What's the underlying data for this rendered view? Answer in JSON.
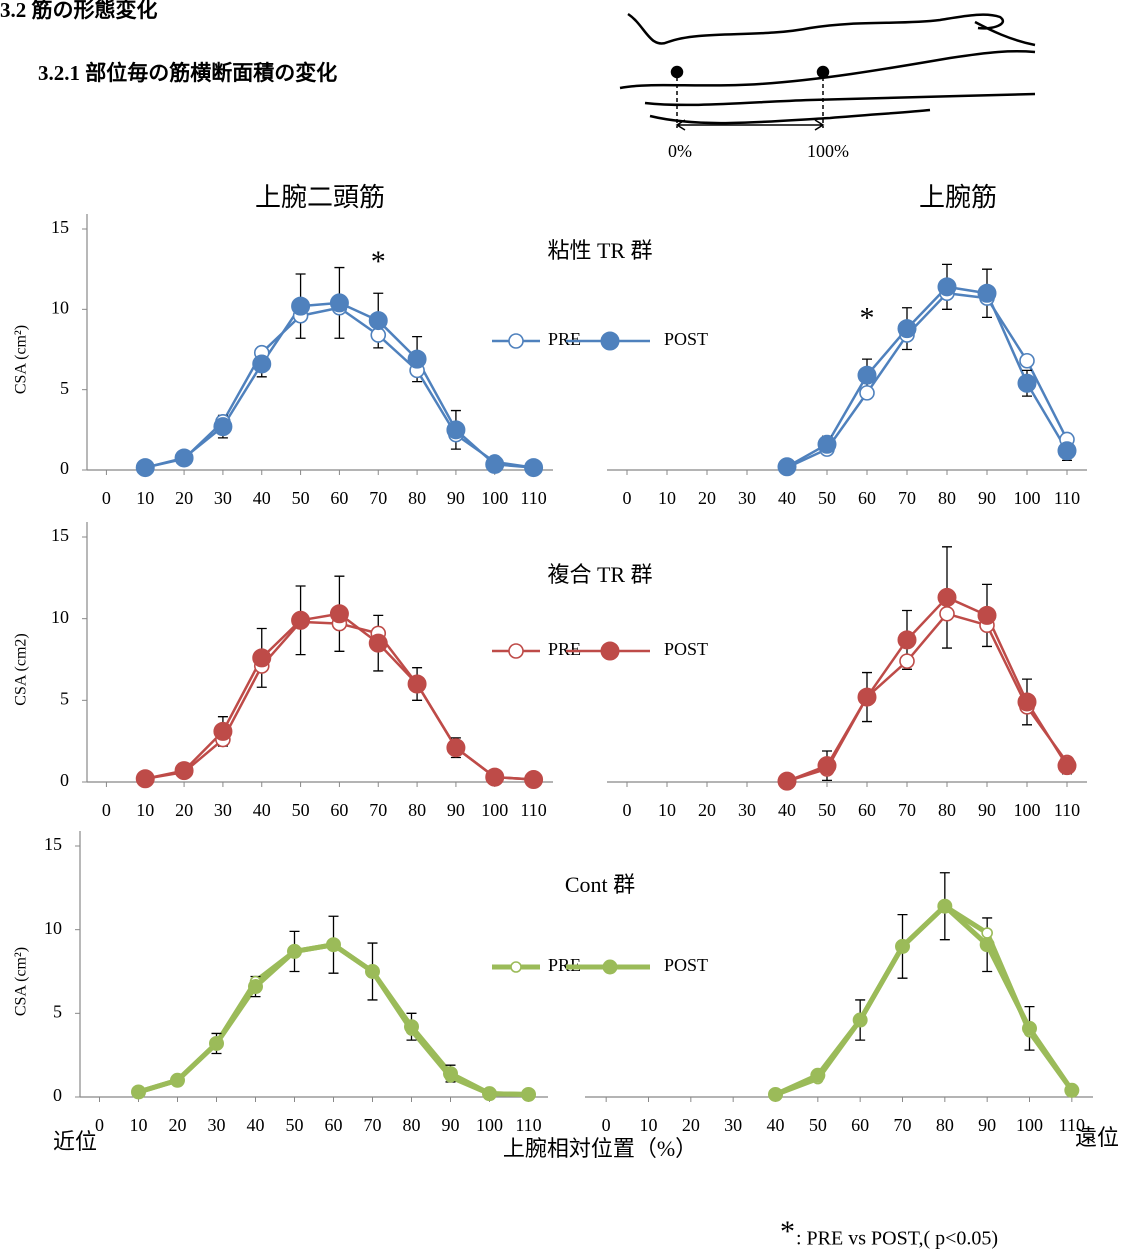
{
  "header": {
    "section": "3.2 筋の形態変化",
    "subsection": "3.2.1 部位毎の筋横断面積の変化"
  },
  "diagram": {
    "labels": [
      "0%",
      "100%"
    ]
  },
  "column_titles": [
    "上腕二頭筋",
    "上腕筋"
  ],
  "x_axis": {
    "left": "近位",
    "center": "上腕相対位置（%）",
    "right": "遠位"
  },
  "footnote": {
    "symbol": "*",
    "text": ": PRE vs POST,( p<0.05)"
  },
  "chart_data": [
    {
      "type": "line",
      "title": "粘性 TR 群",
      "ylabel": "CSA (cm²)",
      "x": [
        10,
        20,
        30,
        40,
        50,
        60,
        70,
        80,
        90,
        100,
        110
      ],
      "xlim": [
        -5,
        115
      ],
      "xticks": [
        0,
        10,
        20,
        30,
        40,
        50,
        60,
        70,
        80,
        90,
        100,
        110
      ],
      "ylim": [
        0,
        15
      ],
      "yticks": [
        0,
        5,
        10,
        15
      ],
      "series": [
        {
          "name": "PRE",
          "color": "#4f81bd",
          "marker": "open",
          "linewidth": 2.5,
          "values": [
            0.15,
            0.7,
            3.0,
            7.3,
            9.6,
            10.1,
            8.4,
            6.2,
            2.2,
            0.5,
            0.15
          ]
        },
        {
          "name": "POST",
          "color": "#4f81bd",
          "marker": "filled",
          "linewidth": 2.5,
          "values": [
            0.15,
            0.75,
            2.7,
            6.6,
            10.2,
            10.4,
            9.3,
            6.9,
            2.5,
            0.35,
            0.15
          ],
          "errors": [
            null,
            null,
            0.7,
            0.8,
            2.0,
            2.2,
            1.7,
            1.4,
            1.2,
            0.3,
            null
          ]
        }
      ],
      "annotations": [
        {
          "text": "*",
          "x": 70,
          "y": 12.8
        }
      ]
    },
    {
      "type": "line",
      "x": [
        40,
        50,
        60,
        70,
        80,
        90,
        100,
        110
      ],
      "xlim": [
        -5,
        115
      ],
      "xticks": [
        0,
        10,
        20,
        30,
        40,
        50,
        60,
        70,
        80,
        90,
        100,
        110
      ],
      "ylim": [
        0,
        15
      ],
      "series": [
        {
          "color": "#4f81bd",
          "marker": "open",
          "linewidth": 2.5,
          "values": [
            0.15,
            1.3,
            4.8,
            8.4,
            11.0,
            10.7,
            6.8,
            1.9
          ]
        },
        {
          "color": "#4f81bd",
          "marker": "filled",
          "linewidth": 2.5,
          "values": [
            0.2,
            1.6,
            5.9,
            8.8,
            11.4,
            11.0,
            5.4,
            1.2
          ],
          "errors": [
            null,
            0.5,
            1.0,
            1.3,
            1.4,
            1.5,
            0.8,
            0.6
          ]
        }
      ],
      "annotations": [
        {
          "text": "*",
          "x": 60,
          "y": 9.3
        }
      ]
    },
    {
      "type": "line",
      "title": "複合 TR 群",
      "ylabel": "CSA (cm2)",
      "x": [
        10,
        20,
        30,
        40,
        50,
        60,
        70,
        80,
        90,
        100,
        110
      ],
      "xlim": [
        -5,
        115
      ],
      "xticks": [
        0,
        10,
        20,
        30,
        40,
        50,
        60,
        70,
        80,
        90,
        100,
        110
      ],
      "ylim": [
        0,
        15
      ],
      "yticks": [
        0,
        5,
        10,
        15
      ],
      "series": [
        {
          "name": "PRE",
          "color": "#be4b48",
          "marker": "open",
          "linewidth": 2.5,
          "values": [
            0.2,
            0.6,
            2.6,
            7.1,
            9.8,
            9.7,
            9.1,
            6.0,
            2.1,
            0.3,
            0.15
          ]
        },
        {
          "name": "POST",
          "color": "#be4b48",
          "marker": "filled",
          "linewidth": 2.5,
          "values": [
            0.2,
            0.7,
            3.1,
            7.6,
            9.9,
            10.3,
            8.5,
            6.0,
            2.1,
            0.3,
            0.15
          ],
          "errors": [
            null,
            null,
            0.9,
            1.8,
            2.1,
            2.3,
            1.7,
            1.0,
            0.6,
            null,
            null
          ]
        }
      ]
    },
    {
      "type": "line",
      "x": [
        40,
        50,
        60,
        70,
        80,
        90,
        100,
        110
      ],
      "xlim": [
        -5,
        115
      ],
      "xticks": [
        0,
        10,
        20,
        30,
        40,
        50,
        60,
        70,
        80,
        90,
        100,
        110
      ],
      "ylim": [
        0,
        15
      ],
      "series": [
        {
          "color": "#be4b48",
          "marker": "open",
          "linewidth": 2.5,
          "values": [
            0.05,
            0.8,
            5.2,
            7.4,
            10.3,
            9.6,
            4.6,
            1.2
          ]
        },
        {
          "color": "#be4b48",
          "marker": "filled",
          "linewidth": 2.5,
          "values": [
            0.05,
            1.0,
            5.2,
            8.7,
            11.3,
            10.2,
            4.9,
            1.0
          ],
          "errors": [
            null,
            0.9,
            1.5,
            1.8,
            3.1,
            1.9,
            1.4,
            0.5
          ]
        }
      ]
    },
    {
      "type": "line",
      "title": "Cont 群",
      "ylabel": "CSA (cm²)",
      "x": [
        10,
        20,
        30,
        40,
        50,
        60,
        70,
        80,
        90,
        100,
        110
      ],
      "xlim": [
        -5,
        115
      ],
      "xticks": [
        0,
        10,
        20,
        30,
        40,
        50,
        60,
        70,
        80,
        90,
        100,
        110
      ],
      "ylim": [
        0,
        15
      ],
      "yticks": [
        0,
        5,
        10,
        15
      ],
      "series": [
        {
          "name": "PRE",
          "color": "#9bbb59",
          "marker": "open",
          "linewidth": 5,
          "values": [
            0.3,
            1.0,
            3.2,
            6.9,
            8.7,
            9.1,
            7.5,
            4.0,
            1.2,
            0.2,
            0.15
          ]
        },
        {
          "name": "POST",
          "color": "#9bbb59",
          "marker": "filled",
          "linewidth": 5,
          "values": [
            0.3,
            1.0,
            3.2,
            6.6,
            8.7,
            9.1,
            7.5,
            4.2,
            1.4,
            0.2,
            0.15
          ],
          "errors": [
            null,
            null,
            0.6,
            0.6,
            1.2,
            1.7,
            1.7,
            0.8,
            0.5,
            null,
            null
          ]
        }
      ]
    },
    {
      "type": "line",
      "x": [
        40,
        50,
        60,
        70,
        80,
        90,
        100,
        110
      ],
      "xlim": [
        -5,
        115
      ],
      "xticks": [
        0,
        10,
        20,
        30,
        40,
        50,
        60,
        70,
        80,
        90,
        100,
        110
      ],
      "ylim": [
        0,
        15
      ],
      "series": [
        {
          "color": "#9bbb59",
          "marker": "open",
          "linewidth": 5,
          "values": [
            0.15,
            1.1,
            4.6,
            9.0,
            11.4,
            9.8,
            3.9,
            0.4
          ]
        },
        {
          "color": "#9bbb59",
          "marker": "filled",
          "linewidth": 5,
          "values": [
            0.15,
            1.3,
            4.6,
            9.0,
            11.4,
            9.1,
            4.1,
            0.4
          ],
          "errors": [
            null,
            null,
            1.2,
            1.9,
            2.0,
            1.6,
            1.3,
            null
          ]
        }
      ]
    }
  ]
}
